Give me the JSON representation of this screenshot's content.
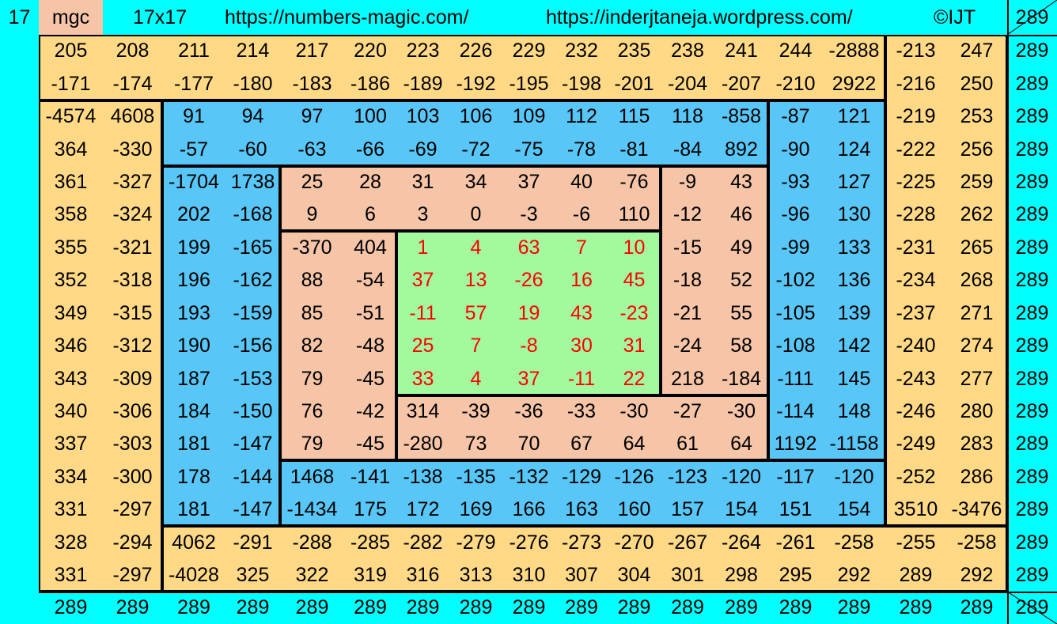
{
  "header": {
    "order": "17",
    "mgc_label": "mgc",
    "size_label": "17x17",
    "url1": "https://numbers-magic.com/",
    "url2": "https://inderjtaneja.wordpress.com/",
    "copyright": "©IJT",
    "magic_sum": "289"
  },
  "colors": {
    "cyan": "#00FFFF",
    "yellow": "#FFD985",
    "blue": "#58C7F7",
    "salmon": "#F6C4A6",
    "green": "#A3F99E",
    "center_text": "#FF0000"
  },
  "grid": [
    [
      "205",
      "208",
      "211",
      "214",
      "217",
      "220",
      "223",
      "226",
      "229",
      "232",
      "235",
      "238",
      "241",
      "244",
      "-2888",
      "-213",
      "247"
    ],
    [
      "-171",
      "-174",
      "-177",
      "-180",
      "-183",
      "-186",
      "-189",
      "-192",
      "-195",
      "-198",
      "-201",
      "-204",
      "-207",
      "-210",
      "2922",
      "-216",
      "250"
    ],
    [
      "-4574",
      "4608",
      "91",
      "94",
      "97",
      "100",
      "103",
      "106",
      "109",
      "112",
      "115",
      "118",
      "-858",
      "-87",
      "121",
      "-219",
      "253"
    ],
    [
      "364",
      "-330",
      "-57",
      "-60",
      "-63",
      "-66",
      "-69",
      "-72",
      "-75",
      "-78",
      "-81",
      "-84",
      "892",
      "-90",
      "124",
      "-222",
      "256"
    ],
    [
      "361",
      "-327",
      "-1704",
      "1738",
      "25",
      "28",
      "31",
      "34",
      "37",
      "40",
      "-76",
      "-9",
      "43",
      "-93",
      "127",
      "-225",
      "259"
    ],
    [
      "358",
      "-324",
      "202",
      "-168",
      "9",
      "6",
      "3",
      "0",
      "-3",
      "-6",
      "110",
      "-12",
      "46",
      "-96",
      "130",
      "-228",
      "262"
    ],
    [
      "355",
      "-321",
      "199",
      "-165",
      "-370",
      "404",
      "1",
      "4",
      "63",
      "7",
      "10",
      "-15",
      "49",
      "-99",
      "133",
      "-231",
      "265"
    ],
    [
      "352",
      "-318",
      "196",
      "-162",
      "88",
      "-54",
      "37",
      "13",
      "-26",
      "16",
      "45",
      "-18",
      "52",
      "-102",
      "136",
      "-234",
      "268"
    ],
    [
      "349",
      "-315",
      "193",
      "-159",
      "85",
      "-51",
      "-11",
      "57",
      "19",
      "43",
      "-23",
      "-21",
      "55",
      "-105",
      "139",
      "-237",
      "271"
    ],
    [
      "346",
      "-312",
      "190",
      "-156",
      "82",
      "-48",
      "25",
      "7",
      "-8",
      "30",
      "31",
      "-24",
      "58",
      "-108",
      "142",
      "-240",
      "274"
    ],
    [
      "343",
      "-309",
      "187",
      "-153",
      "79",
      "-45",
      "33",
      "4",
      "37",
      "-11",
      "22",
      "218",
      "-184",
      "-111",
      "145",
      "-243",
      "277"
    ],
    [
      "340",
      "-306",
      "184",
      "-150",
      "76",
      "-42",
      "314",
      "-39",
      "-36",
      "-33",
      "-30",
      "-27",
      "-30",
      "-114",
      "148",
      "-246",
      "280"
    ],
    [
      "337",
      "-303",
      "181",
      "-147",
      "79",
      "-45",
      "-280",
      "73",
      "70",
      "67",
      "64",
      "61",
      "64",
      "1192",
      "-1158",
      "-249",
      "283"
    ],
    [
      "334",
      "-300",
      "178",
      "-144",
      "1468",
      "-141",
      "-138",
      "-135",
      "-132",
      "-129",
      "-126",
      "-123",
      "-120",
      "-117",
      "-120",
      "-252",
      "286"
    ],
    [
      "331",
      "-297",
      "181",
      "-147",
      "-1434",
      "175",
      "172",
      "169",
      "166",
      "163",
      "160",
      "157",
      "154",
      "151",
      "154",
      "3510",
      "-3476"
    ],
    [
      "328",
      "-294",
      "4062",
      "-291",
      "-288",
      "-285",
      "-282",
      "-279",
      "-276",
      "-273",
      "-270",
      "-267",
      "-264",
      "-261",
      "-258",
      "-255",
      "-258"
    ],
    [
      "331",
      "-297",
      "-4028",
      "325",
      "322",
      "319",
      "316",
      "313",
      "310",
      "307",
      "304",
      "301",
      "298",
      "295",
      "292",
      "289",
      "292"
    ]
  ],
  "row_sums": [
    "289",
    "289",
    "289",
    "289",
    "289",
    "289",
    "289",
    "289",
    "289",
    "289",
    "289",
    "289",
    "289",
    "289",
    "289",
    "289",
    "289"
  ],
  "col_sums": [
    "289",
    "289",
    "289",
    "289",
    "289",
    "289",
    "289",
    "289",
    "289",
    "289",
    "289",
    "289",
    "289",
    "289",
    "289",
    "289",
    "289"
  ],
  "diagonal_sum_top": "289",
  "diagonal_sum_bottom": "289"
}
